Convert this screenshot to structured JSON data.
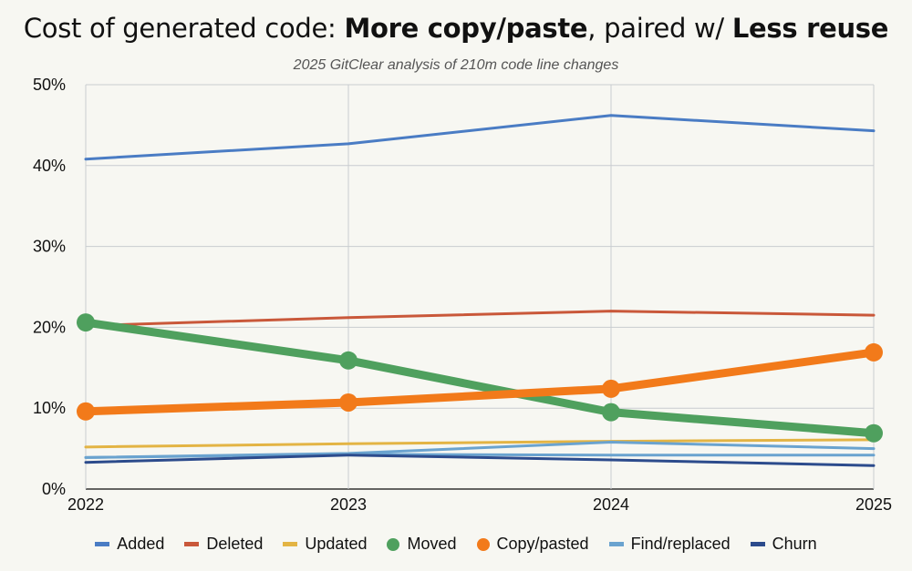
{
  "chart_data": {
    "type": "line",
    "title_parts": [
      {
        "text": "Cost of generated code: ",
        "bold": false
      },
      {
        "text": "More copy/paste",
        "bold": true
      },
      {
        "text": ", paired w/ ",
        "bold": false
      },
      {
        "text": "Less reuse",
        "bold": true
      }
    ],
    "subtitle": "2025 GitClear analysis of 210m code line changes",
    "categories": [
      "2022",
      "2023",
      "2024",
      "2025"
    ],
    "ylim": [
      0,
      50
    ],
    "yticks": [
      "0%",
      "10%",
      "20%",
      "30%",
      "40%",
      "50%"
    ],
    "grid": true,
    "legend_position": "bottom",
    "series": [
      {
        "name": "Added",
        "color": "#4a7cc4",
        "emphasis": false,
        "values": [
          40.8,
          42.7,
          46.2,
          44.3
        ]
      },
      {
        "name": "Deleted",
        "color": "#c9583a",
        "emphasis": false,
        "values": [
          20.2,
          21.2,
          22.0,
          21.5
        ]
      },
      {
        "name": "Updated",
        "color": "#e3b444",
        "emphasis": false,
        "values": [
          5.2,
          5.6,
          5.9,
          6.1
        ]
      },
      {
        "name": "Find/replaced",
        "color": "#6aa3cf",
        "emphasis": false,
        "values": [
          3.9,
          4.4,
          5.8,
          5.0
        ]
      },
      {
        "name": "",
        "color": "#6aa3cf",
        "emphasis": false,
        "legend": false,
        "values": [
          3.9,
          4.3,
          4.2,
          4.2
        ]
      },
      {
        "name": "Churn",
        "color": "#2c4b8c",
        "emphasis": false,
        "values": [
          3.3,
          4.2,
          3.6,
          2.9
        ]
      },
      {
        "name": "Moved",
        "color": "#4fa05e",
        "emphasis": true,
        "values": [
          20.6,
          15.9,
          9.5,
          6.9
        ]
      },
      {
        "name": "Copy/pasted",
        "color": "#f27a1a",
        "emphasis": true,
        "values": [
          9.6,
          10.7,
          12.4,
          16.9
        ]
      }
    ],
    "legend_order": [
      "Added",
      "Deleted",
      "Updated",
      "Moved",
      "Copy/pasted",
      "Find/replaced",
      "Churn"
    ]
  }
}
